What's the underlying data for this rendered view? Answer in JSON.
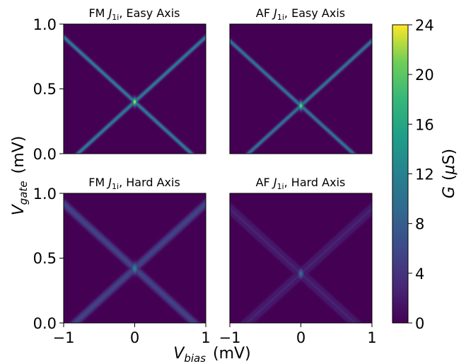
{
  "chart_data": {
    "type": "heatmap",
    "xlabel": {
      "main": "V",
      "sub": "bias",
      "unit": "(mV)"
    },
    "ylabel": {
      "main": "V",
      "sub": "gate",
      "unit": "(mV)"
    },
    "colorbar": {
      "label": {
        "main": "G",
        "unit_open": "(",
        "unit_mu": "μ",
        "unit_rest": "S)"
      },
      "min": 0,
      "max": 24,
      "ticks": [
        0,
        4,
        8,
        12,
        16,
        20,
        24
      ],
      "colormap": "viridis"
    },
    "xlim": [
      -1,
      1
    ],
    "ylim": [
      0,
      1
    ],
    "xticks": [
      {
        "v": -1,
        "t": "−1"
      },
      {
        "v": 0,
        "t": "0"
      },
      {
        "v": 1,
        "t": "1"
      }
    ],
    "yticks": [
      {
        "v": 0,
        "t": "0.0"
      },
      {
        "v": 0.5,
        "t": "0.5"
      },
      {
        "v": 1,
        "t": "1.0"
      }
    ],
    "panels": [
      {
        "title": {
          "prefix": "FM ",
          "J": "J",
          "sub": "1i",
          "suffix": ", Easy Axis"
        },
        "crossing": [
          0.0,
          0.4
        ],
        "slope": 0.5,
        "peak": 24,
        "line_value": 12,
        "width": 0.018,
        "peak_width": 0.03,
        "split": 0
      },
      {
        "title": {
          "prefix": "AF ",
          "J": "J",
          "sub": "1i",
          "suffix": ", Easy Axis"
        },
        "crossing": [
          0.0,
          0.37
        ],
        "slope": 0.5,
        "peak": 22,
        "line_value": 11,
        "width": 0.018,
        "peak_width": 0.03,
        "split": 0
      },
      {
        "title": {
          "prefix": "FM ",
          "J": "J",
          "sub": "1i",
          "suffix": ", Hard Axis"
        },
        "crossing": [
          0.0,
          0.42
        ],
        "slope": 0.5,
        "peak": 12,
        "line_value": 8,
        "width": 0.02,
        "peak_width": 0.04,
        "split": 0.025
      },
      {
        "title": {
          "prefix": "AF ",
          "J": "J",
          "sub": "1i",
          "suffix": ", Hard Axis"
        },
        "crossing": [
          0.0,
          0.38
        ],
        "slope": 0.5,
        "peak": 10,
        "line_value": 5,
        "width": 0.018,
        "peak_width": 0.035,
        "split": 0.035
      }
    ]
  }
}
